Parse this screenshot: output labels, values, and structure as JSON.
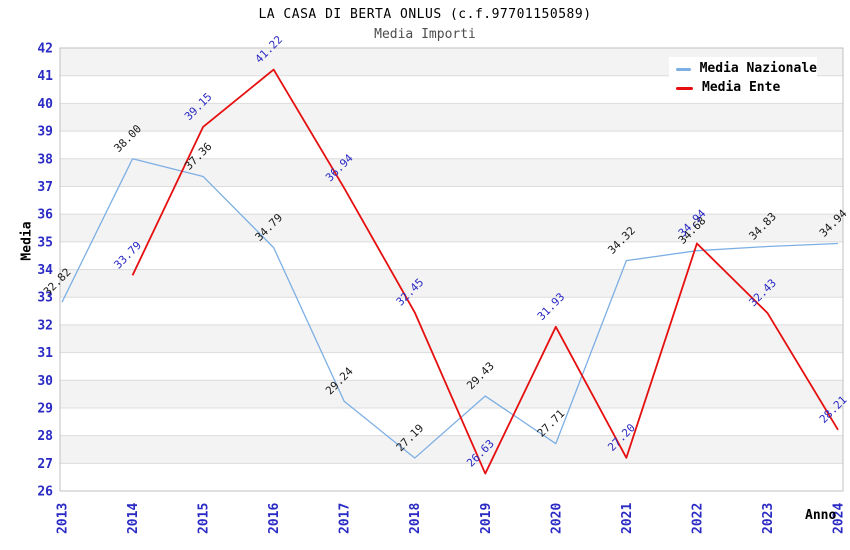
{
  "header": {
    "title": "LA CASA DI BERTA ONLUS (c.f.97701150589)",
    "subtitle": "Media Importi"
  },
  "chart_data": {
    "type": "line",
    "title": "LA CASA DI BERTA ONLUS (c.f.97701150589)",
    "subtitle": "Media Importi",
    "xlabel": "Anno",
    "ylabel": "Media",
    "x": [
      2013,
      2014,
      2015,
      2016,
      2017,
      2018,
      2019,
      2020,
      2021,
      2022,
      2023,
      2024
    ],
    "ylim": [
      26,
      42
    ],
    "y_tick_step": 1,
    "grid": "horizontal-stripes",
    "legend_position": "top-right",
    "series": [
      {
        "name": "Media Nazionale",
        "color": "#7dafe4",
        "label_color": "#1a1a1a",
        "values": [
          32.82,
          38.0,
          37.36,
          34.79,
          29.24,
          27.19,
          29.43,
          27.71,
          34.32,
          34.68,
          34.83,
          34.94
        ]
      },
      {
        "name": "Media Ente",
        "color": "#e60f0f",
        "label_color": "#2a2ac4",
        "values": [
          null,
          33.79,
          39.15,
          41.22,
          36.94,
          32.45,
          26.63,
          31.93,
          27.2,
          34.94,
          32.43,
          28.21
        ]
      }
    ]
  },
  "colors": {
    "tick_label": "#2a2ac4",
    "stripe": "#f3f3f3",
    "gridline": "#dcdcdc",
    "plot_border": "#c0c0c0",
    "background": "#ffffff",
    "subtitle_text": "#4d4d4d"
  }
}
